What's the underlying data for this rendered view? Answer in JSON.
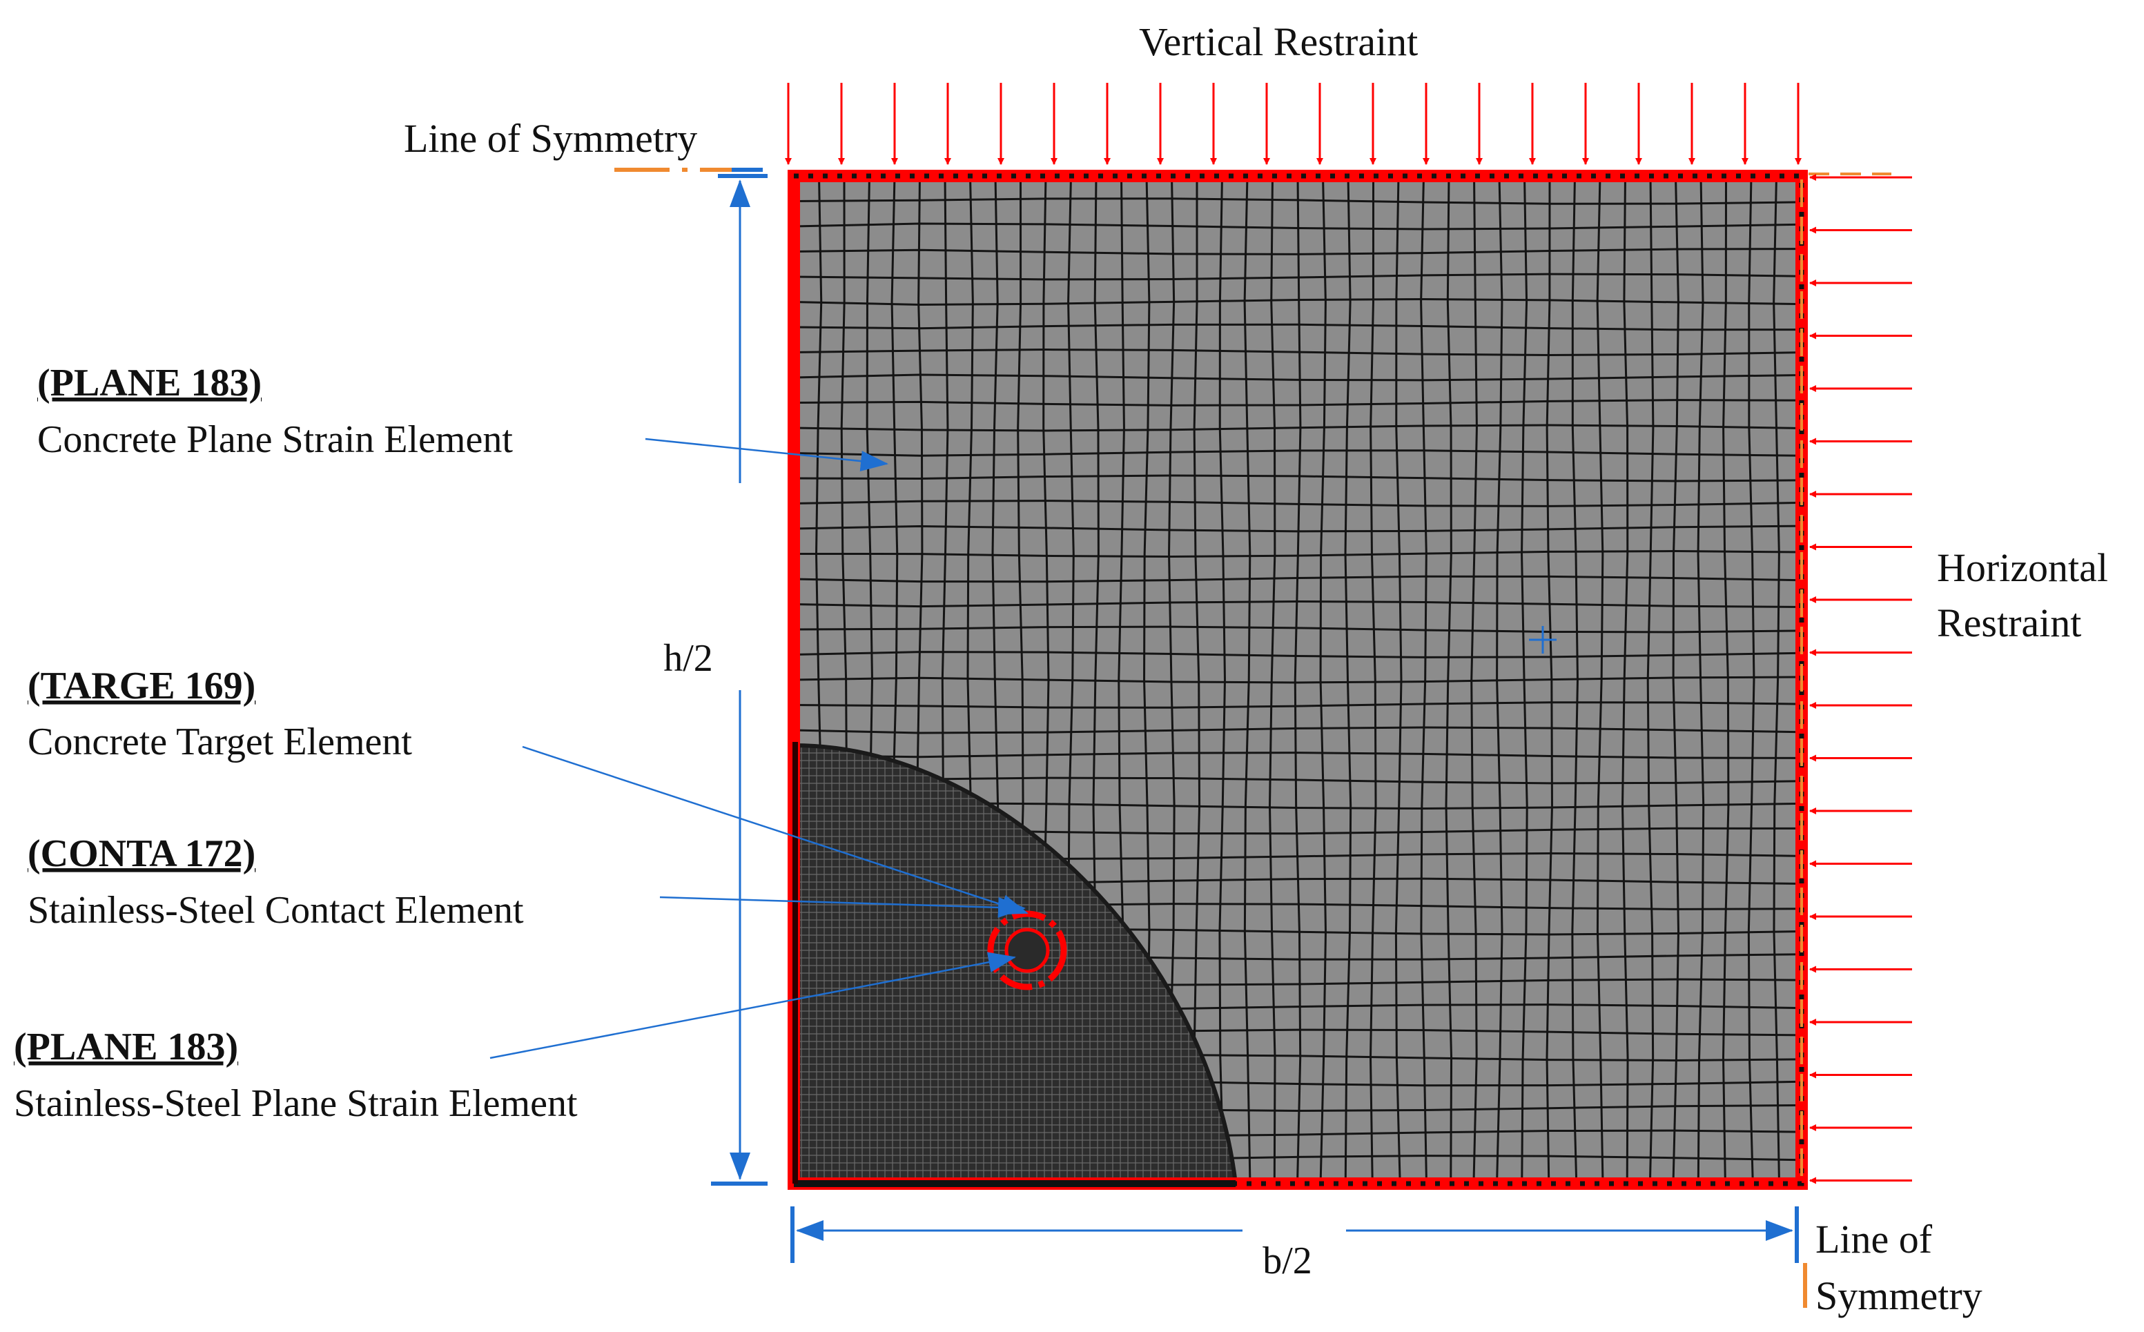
{
  "labels": {
    "vertical_restraint": "Vertical Restraint",
    "line_of_symmetry_top": "Line of Symmetry",
    "horizontal_restraint_1": "Horizontal",
    "horizontal_restraint_2": "Restraint",
    "line_of_symmetry_bottom_1": "Line of",
    "line_of_symmetry_bottom_2": "Symmetry",
    "dim_height": "h/2",
    "dim_width": "b/2"
  },
  "annotations": [
    {
      "code": "(PLANE 183)",
      "desc": "Concrete Plane Strain Element"
    },
    {
      "code": "(TARGE 169)",
      "desc": "Concrete Target Element"
    },
    {
      "code": "(CONTA 172)",
      "desc": "Stainless-Steel Contact Element"
    },
    {
      "code": "(PLANE 183)",
      "desc": "Stainless-Steel Plane Strain Element"
    }
  ],
  "colors": {
    "restraint_arrow": "#ff0000",
    "boundary": "#ff0000",
    "mesh_fill": "#8c8c8c",
    "mesh_line": "#151515",
    "dimension": "#1f6fd1",
    "symmetry_line": "#f08a30"
  }
}
